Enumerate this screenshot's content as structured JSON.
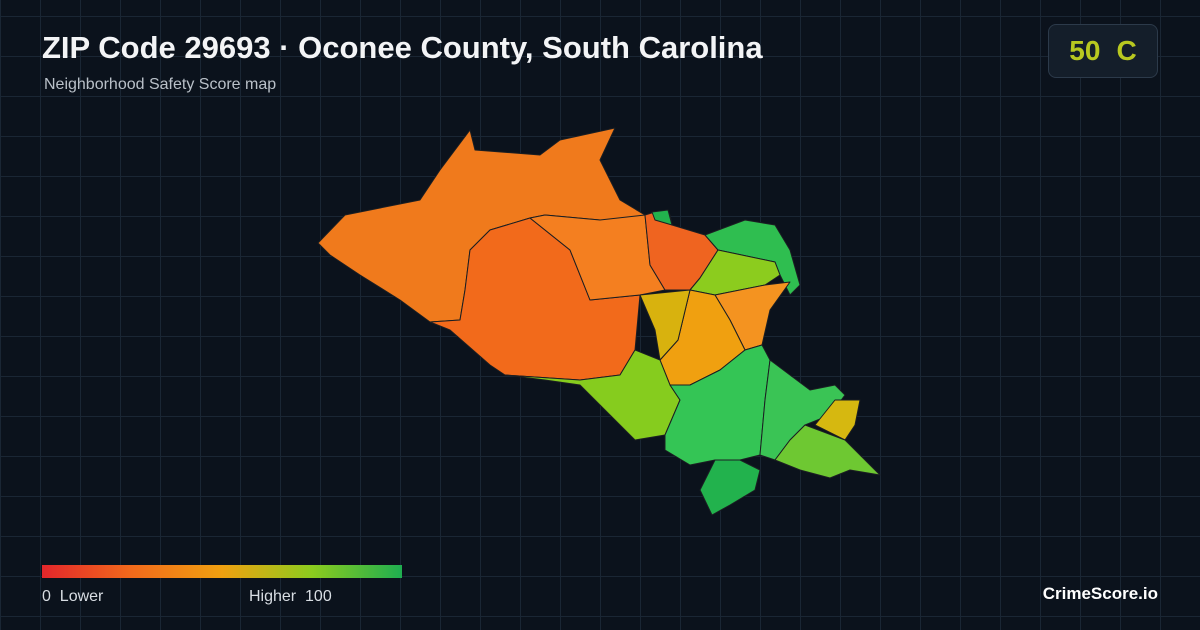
{
  "header": {
    "title": "ZIP Code 29693 · Oconee County, South Carolina",
    "subtitle": "Neighborhood Safety Score map"
  },
  "score": {
    "value": 50,
    "grade": "C"
  },
  "legend": {
    "min": 0,
    "min_label": "Lower",
    "max_label": "Higher",
    "max": 100
  },
  "brand": "CrimeScore.io"
}
